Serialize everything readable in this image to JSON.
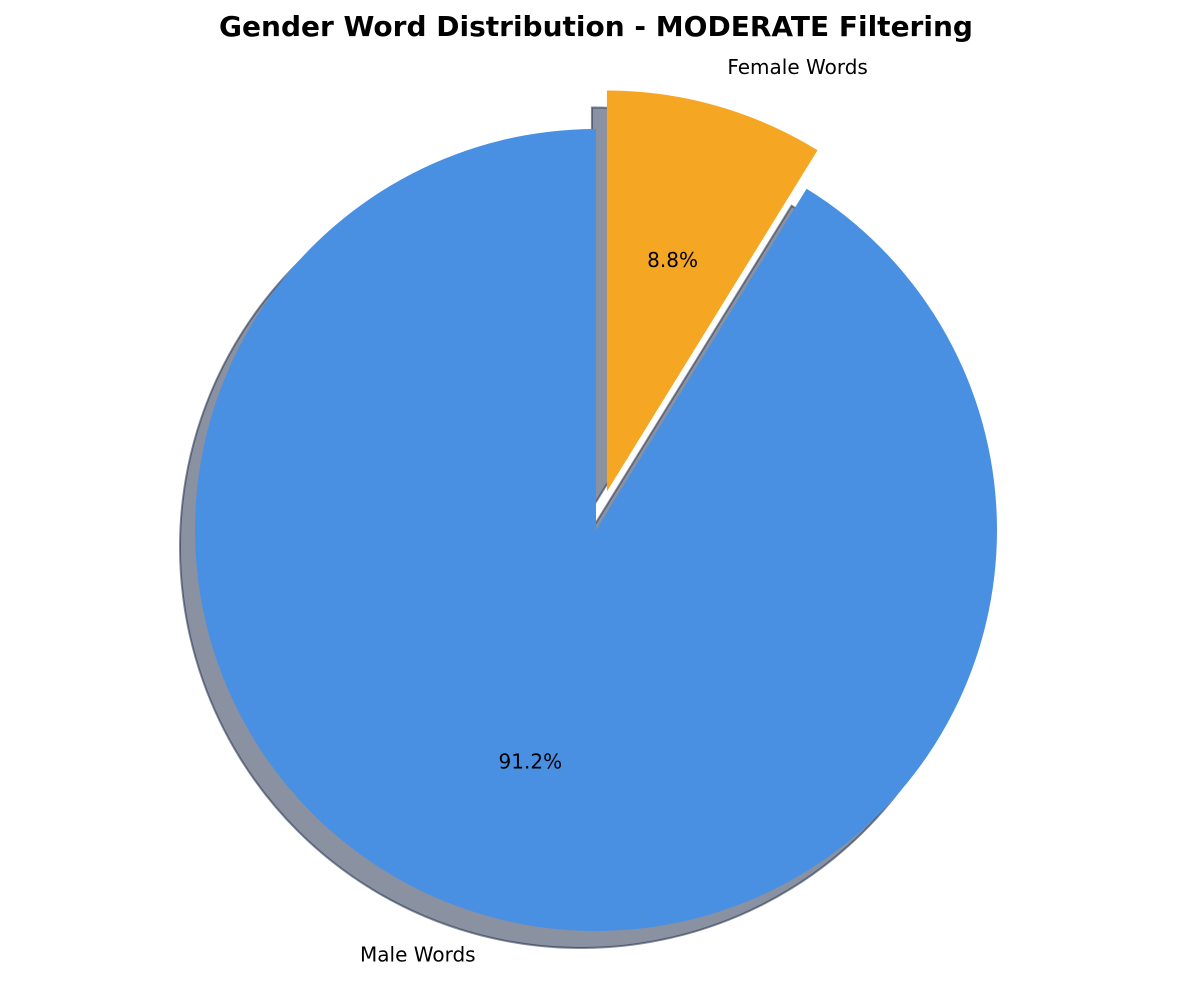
{
  "chart_data": {
    "type": "pie",
    "title": "Gender Word Distribution - MODERATE Filtering",
    "start_angle_deg": 90,
    "direction": "clockwise",
    "shadow": true,
    "slices": [
      {
        "label": "Female Words",
        "percent": 8.8,
        "pct_label": "8.8%",
        "color": "#F5A623",
        "exploded": true
      },
      {
        "label": "Male Words",
        "percent": 91.2,
        "pct_label": "91.2%",
        "color": "#4A90E2",
        "exploded": false
      }
    ]
  }
}
